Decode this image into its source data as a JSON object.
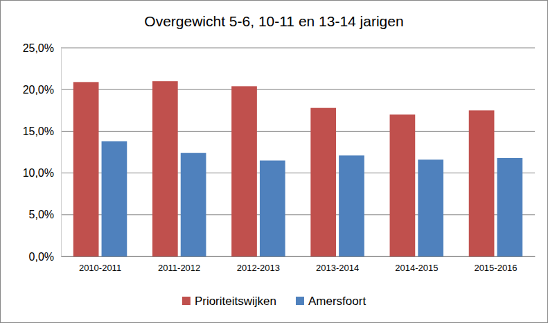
{
  "chart_data": {
    "type": "bar",
    "title": "Overgewicht 5-6, 10-11 en 13-14 jarigen",
    "categories": [
      "2010-2011",
      "2011-2012",
      "2012-2013",
      "2013-2014",
      "2014-2015",
      "2015-2016"
    ],
    "series": [
      {
        "name": "Prioriteitswijken",
        "color": "#c0504d",
        "values": [
          20.9,
          21.0,
          20.4,
          17.8,
          17.0,
          17.5
        ]
      },
      {
        "name": "Amersfoort",
        "color": "#4f81bd",
        "values": [
          13.8,
          12.4,
          11.5,
          12.1,
          11.6,
          11.8
        ]
      }
    ],
    "ylim": [
      0,
      25
    ],
    "yticks": [
      {
        "value": 0,
        "label": "0,0%"
      },
      {
        "value": 5,
        "label": "5,0%"
      },
      {
        "value": 10,
        "label": "10,0%"
      },
      {
        "value": 15,
        "label": "15,0%"
      },
      {
        "value": 20,
        "label": "20,0%"
      },
      {
        "value": 25,
        "label": "25,0%"
      }
    ],
    "grid": true,
    "legend": "bottom"
  }
}
